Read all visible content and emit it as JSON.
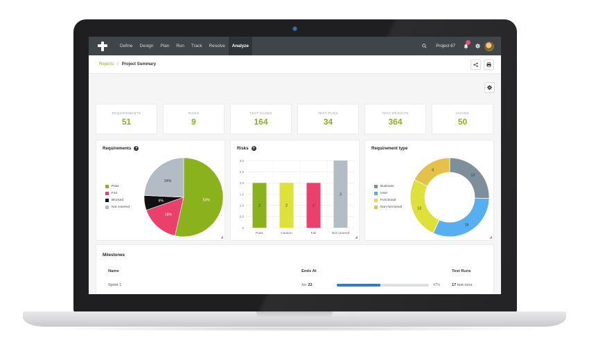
{
  "topnav": {
    "items": [
      "Define",
      "Design",
      "Plan",
      "Run",
      "Track",
      "Resolve",
      "Analyze"
    ],
    "active_index": 6,
    "project_name": "Project 67"
  },
  "breadcrumb": {
    "link": "Reports",
    "separator": "/",
    "current": "Project Summary"
  },
  "stats": [
    {
      "label": "REQUIREMENTS",
      "value": "51"
    },
    {
      "label": "RISKS",
      "value": "9"
    },
    {
      "label": "TEST CASES",
      "value": "164"
    },
    {
      "label": "TEST RUNS",
      "value": "34"
    },
    {
      "label": "TEST RESULTS",
      "value": "364"
    },
    {
      "label": "ISSUES",
      "value": "50"
    }
  ],
  "panels": {
    "requirements_title": "Requirements",
    "risks_title": "Risks",
    "req_type_title": "Requirement type",
    "help_glyph": "?"
  },
  "chart_data": [
    {
      "type": "pie",
      "title": "Requirements",
      "labels": [
        "Pass",
        "Fail",
        "Blocked",
        "Not covered"
      ],
      "values": [
        53,
        16,
        6,
        24
      ],
      "value_labels": [
        "53%",
        "16%",
        "6%",
        "24%"
      ],
      "colors": [
        "#8ab21d",
        "#e9416c",
        "#111111",
        "#b3bcc4"
      ]
    },
    {
      "type": "bar",
      "title": "Risks",
      "categories": [
        "Pass",
        "Caution",
        "Fail",
        "Not covered"
      ],
      "values": [
        2,
        2,
        2,
        3
      ],
      "colors": [
        "#8ab21d",
        "#dde13a",
        "#e9416c",
        "#b3bcc4"
      ],
      "ylim": [
        0,
        3.0
      ],
      "yticks": [
        "0",
        "0.5",
        "1.0",
        "1.5",
        "2.0",
        "2.5",
        "3.0"
      ],
      "grid": true
    },
    {
      "type": "pie",
      "title": "Requirement type",
      "labels": [
        "Business",
        "User",
        "Functional",
        "Non-functional"
      ],
      "values": [
        13,
        16,
        13,
        9
      ],
      "colors": [
        "#7d8f9b",
        "#57aef0",
        "#dde13a",
        "#e6c14a"
      ]
    }
  ],
  "milestones": {
    "title": "Milestones",
    "headers": {
      "name": "Name",
      "ends_at": "Ends At",
      "test_runs": "Test Runs"
    },
    "rows": [
      {
        "name": "Sprint 1",
        "month": "Apr",
        "day": "22",
        "progress_label": "47%",
        "progress": 0.47,
        "runs_count": "17",
        "runs_label": "test runs"
      }
    ]
  },
  "colors": {
    "accent": "#8ab21d",
    "nav_bg": "#3f4549",
    "progress": "#2f7fbe"
  }
}
